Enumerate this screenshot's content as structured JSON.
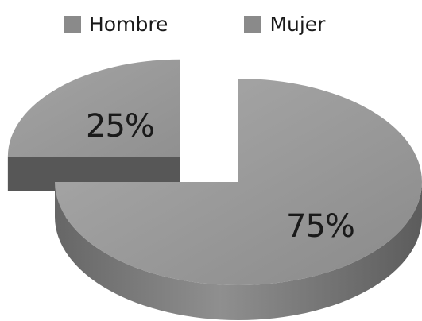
{
  "chart_data": {
    "type": "pie",
    "style": "3d-exploded",
    "categories": [
      "Hombre",
      "Mujer"
    ],
    "values": [
      25,
      75
    ],
    "data_labels": [
      "25%",
      "75%"
    ],
    "legend": {
      "placement": "top",
      "entries": [
        "Hombre",
        "Mujer"
      ]
    },
    "colors": {
      "legend_swatch": "#8a8a8a",
      "top_light": "#a8a8a8",
      "top_dark": "#888888",
      "side_light": "#8e8e8e",
      "side_dark": "#5e5e5e",
      "inner_face": "#555555",
      "text": "#1a1a1a"
    }
  }
}
